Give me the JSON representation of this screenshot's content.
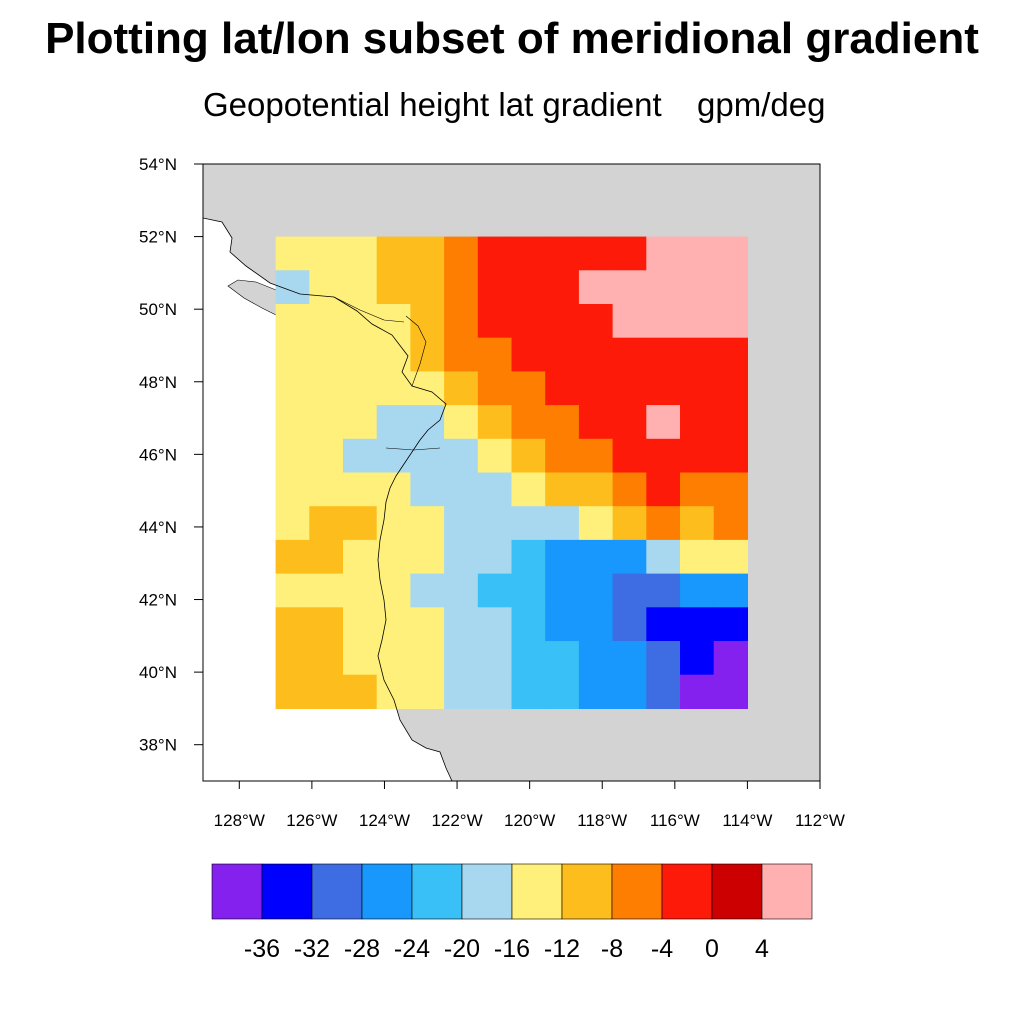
{
  "title": "Plotting lat/lon subset of meridional gradient",
  "subtitle_left": "Geopotential height lat gradient",
  "subtitle_right": "gpm/deg",
  "map": {
    "projection": "cylindrical-equidistant",
    "lon_range": [
      -129,
      -112
    ],
    "lat_range": [
      37,
      54
    ],
    "data_lon_range": [
      -127,
      -114
    ],
    "data_lat_range": [
      39,
      52
    ],
    "land_color": "#d3d3d3",
    "ocean_color": "#ffffff",
    "x_ticks": [
      {
        "lon": -128,
        "label": "128°W"
      },
      {
        "lon": -126,
        "label": "126°W"
      },
      {
        "lon": -124,
        "label": "124°W"
      },
      {
        "lon": -122,
        "label": "122°W"
      },
      {
        "lon": -120,
        "label": "120°W"
      },
      {
        "lon": -118,
        "label": "118°W"
      },
      {
        "lon": -116,
        "label": "116°W"
      },
      {
        "lon": -114,
        "label": "114°W"
      },
      {
        "lon": -112,
        "label": "112°W"
      }
    ],
    "y_ticks": [
      {
        "lat": 54,
        "label": "54°N"
      },
      {
        "lat": 52,
        "label": "52°N"
      },
      {
        "lat": 50,
        "label": "50°N"
      },
      {
        "lat": 48,
        "label": "48°N"
      },
      {
        "lat": 46,
        "label": "46°N"
      },
      {
        "lat": 44,
        "label": "44°N"
      },
      {
        "lat": 42,
        "label": "42°N"
      },
      {
        "lat": 40,
        "label": "40°N"
      },
      {
        "lat": 38,
        "label": "38°N"
      }
    ]
  },
  "chart_data": {
    "type": "heatmap",
    "title": "Plotting lat/lon subset of meridional gradient",
    "subtitle": "Geopotential height lat gradient",
    "units": "gpm/deg",
    "levels": [
      -36,
      -32,
      -28,
      -24,
      -20,
      -16,
      -12,
      -8,
      -4,
      0,
      4
    ],
    "colors": [
      "#8521ee",
      "#0000ff",
      "#3e6ce3",
      "#1897fc",
      "#39c0f6",
      "#a8d8f0",
      "#fef07a",
      "#fdbd1c",
      "#fe7e01",
      "#fe1a08",
      "#cc0000",
      "#ffb1b2"
    ],
    "level_labels": [
      "-36",
      "-32",
      "-28",
      "-24",
      "-20",
      "-16",
      "-12",
      "-8",
      "-4",
      "0",
      "4"
    ],
    "grid_lon": [
      -127,
      -126,
      -125,
      -124,
      -123,
      -122,
      -121,
      -120,
      -119,
      -118,
      -117,
      -116,
      -115,
      -114
    ],
    "grid_lat": [
      52,
      51,
      50,
      49,
      48,
      47,
      46,
      45,
      44,
      43,
      42,
      41,
      40,
      39
    ],
    "grid_values": [
      [
        -14,
        -14,
        -14,
        -12,
        -9,
        -6,
        -3,
        -2,
        -2,
        -2,
        -2,
        6,
        6,
        6
      ],
      [
        -18,
        -14,
        -14,
        -12,
        -9,
        -6,
        -3,
        -3,
        -2,
        6,
        6,
        6,
        6,
        6
      ],
      [
        -14,
        -14,
        -14,
        -13,
        -10,
        -7,
        -4,
        -3,
        -2,
        -2,
        6,
        6,
        6,
        6
      ],
      [
        -14,
        -14,
        -14,
        -13,
        -12,
        -8,
        -5,
        -4,
        -2,
        -2,
        -2,
        -2,
        -2,
        -2
      ],
      [
        -13,
        -14,
        -14,
        -14,
        -13,
        -11,
        -6,
        -5,
        -3,
        -2,
        -2,
        -2,
        -2,
        -2
      ],
      [
        -14,
        -14,
        -14,
        -18,
        -17,
        -14,
        -11,
        -7,
        -6,
        -3,
        -2,
        6,
        -2,
        -2
      ],
      [
        -14,
        -14,
        -18,
        -18,
        -18,
        -18,
        -14,
        -11,
        -8,
        -5,
        -4,
        -3,
        -3,
        -3
      ],
      [
        -14,
        -14,
        -14,
        -14,
        -18,
        -18,
        -18,
        -14,
        -12,
        -9,
        -6,
        -2,
        -6,
        -6
      ],
      [
        -14,
        -10,
        -10,
        -14,
        -14,
        -18,
        -18,
        -18,
        -17,
        -14,
        -10,
        -8,
        -10,
        -8
      ],
      [
        -10,
        -10,
        -14,
        -14,
        -14,
        -18,
        -18,
        -22,
        -26,
        -26,
        -26,
        -18,
        -14,
        -14
      ],
      [
        -14,
        -14,
        -14,
        -14,
        -18,
        -18,
        -22,
        -22,
        -26,
        -28,
        -30,
        -30,
        -26,
        -26
      ],
      [
        -10,
        -10,
        -14,
        -14,
        -14,
        -18,
        -18,
        -22,
        -26,
        -26,
        -30,
        -34,
        -34,
        -34
      ],
      [
        -10,
        -10,
        -14,
        -14,
        -14,
        -18,
        -18,
        -22,
        -22,
        -26,
        -26,
        -30,
        -34,
        -38
      ],
      [
        -10,
        -10,
        -10,
        -14,
        -14,
        -18,
        -18,
        -22,
        -22,
        -26,
        -26,
        -30,
        -38,
        -38
      ]
    ]
  }
}
